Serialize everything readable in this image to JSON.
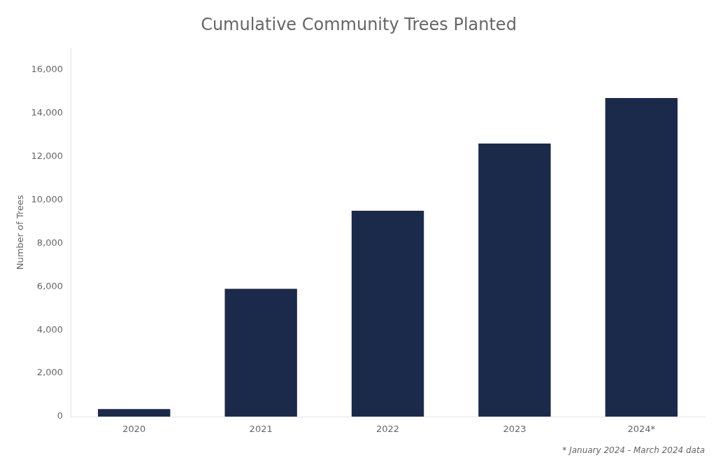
{
  "chart_data": {
    "type": "bar",
    "title": "Cumulative Community Trees Planted",
    "categories": [
      "2020",
      "2021",
      "2022",
      "2023",
      "2024*"
    ],
    "values": [
      350,
      5900,
      9500,
      12600,
      14700
    ],
    "color": "#1b2a4a",
    "ylabel": "Number of Trees",
    "ylim": [
      0,
      17000
    ],
    "yticks": [
      0,
      {
        "value": 2000,
        "label": "2,000"
      },
      {
        "value": 4000,
        "label": "4,000"
      },
      {
        "value": 6000,
        "label": "6,000"
      },
      {
        "value": 8000,
        "label": "8,000"
      },
      {
        "value": 10000,
        "label": "10,000"
      },
      {
        "value": 12000,
        "label": "12,000"
      },
      {
        "value": 14000,
        "label": "14,000"
      },
      {
        "value": 16000,
        "label": "16,000"
      }
    ],
    "footnote": "* January 2024 - March 2024 data",
    "grid": false
  }
}
